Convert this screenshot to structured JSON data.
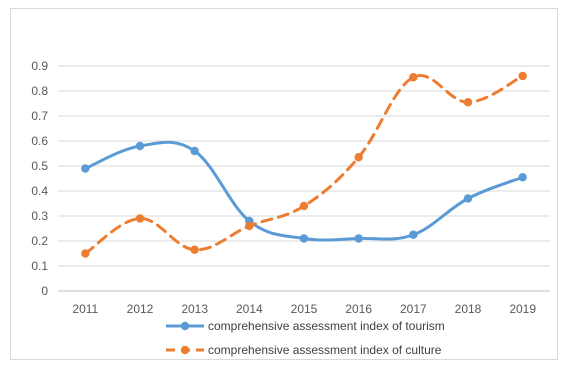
{
  "chart_data": {
    "type": "line",
    "x": [
      "2011",
      "2012",
      "2013",
      "2014",
      "2015",
      "2016",
      "2017",
      "2018",
      "2019"
    ],
    "series": [
      {
        "name": "comprehensive assessment index of tourism",
        "values": [
          0.49,
          0.58,
          0.56,
          0.28,
          0.21,
          0.21,
          0.225,
          0.37,
          0.455
        ],
        "color": "#5B9BD5",
        "style": "solid",
        "smooth": true
      },
      {
        "name": "comprehensive assessment index of culture",
        "values": [
          0.15,
          0.29,
          0.165,
          0.26,
          0.34,
          0.535,
          0.855,
          0.755,
          0.86
        ],
        "color": "#ED7D31",
        "style": "dashed",
        "smooth": true
      }
    ],
    "ylim": [
      0,
      0.9
    ],
    "yticks": [
      "0",
      "0.1",
      "0.2",
      "0.3",
      "0.4",
      "0.5",
      "0.6",
      "0.7",
      "0.8",
      "0.9"
    ],
    "grid": true,
    "legend_position": "bottom",
    "title": "",
    "xlabel": "",
    "ylabel": ""
  }
}
